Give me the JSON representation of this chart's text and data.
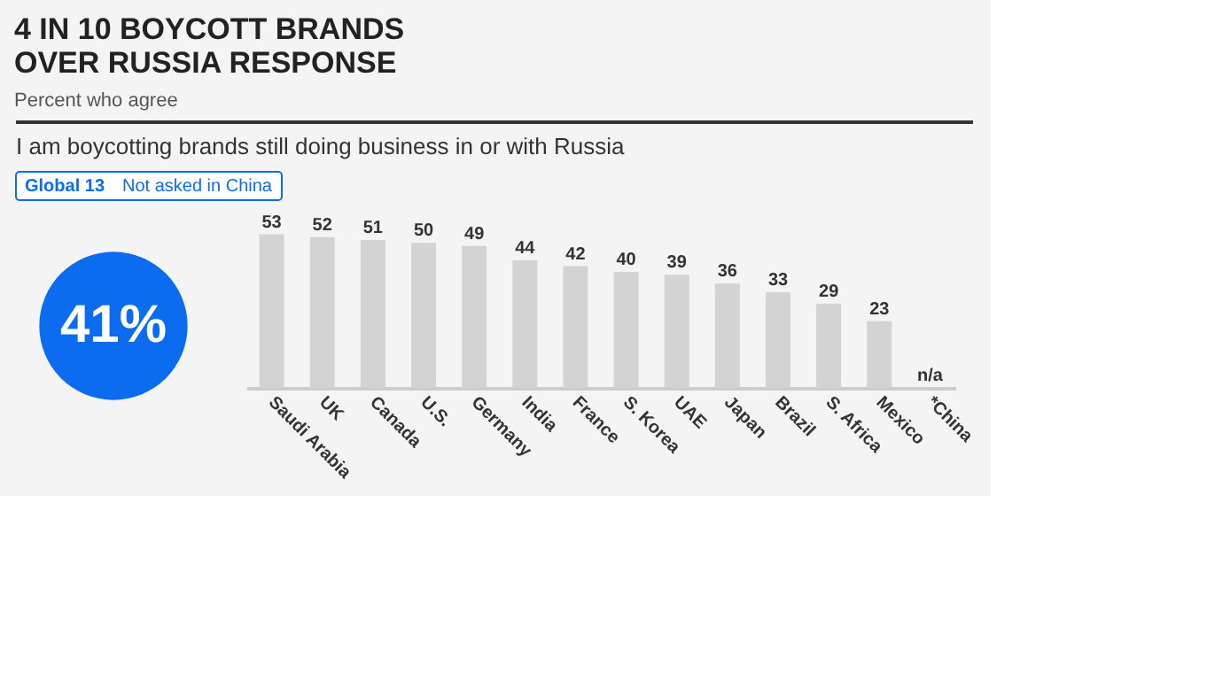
{
  "chart_data": {
    "type": "bar",
    "title": "4 IN 10 BOYCOTT BRANDS OVER RUSSIA RESPONSE",
    "subtitle": "Percent who agree",
    "annotations": [
      "I am boycotting brands still doing business in or with Russia",
      "Global 13",
      "Not asked in China",
      "41%"
    ],
    "categories": [
      "Saudi Arabia",
      "UK",
      "Canada",
      "U.S.",
      "Germany",
      "India",
      "France",
      "S. Korea",
      "UAE",
      "Japan",
      "Brazil",
      "S. Africa",
      "Mexico",
      "*China"
    ],
    "values": [
      53,
      52,
      51,
      50,
      49,
      44,
      42,
      40,
      39,
      36,
      33,
      29,
      23,
      null
    ],
    "value_labels": [
      "53",
      "52",
      "51",
      "50",
      "49",
      "44",
      "42",
      "40",
      "39",
      "36",
      "33",
      "29",
      "23",
      "n/a"
    ],
    "color": "#d3d3d3"
  }
}
